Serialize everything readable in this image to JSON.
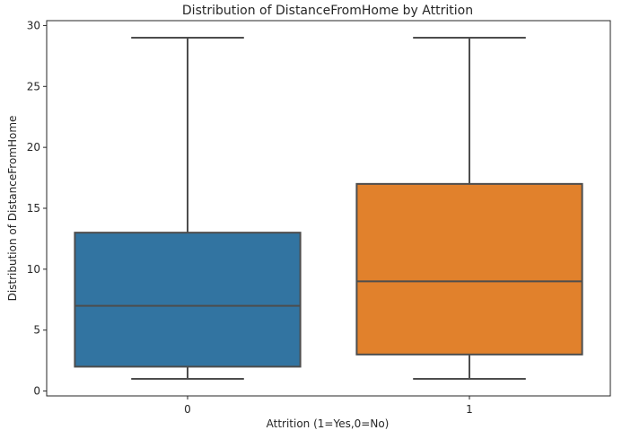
{
  "chart_data": {
    "type": "box",
    "title": "Distribution of DistanceFromHome by Attrition",
    "xlabel": "Attrition (1=Yes,0=No)",
    "ylabel": "Distribution of DistanceFromHome",
    "categories": [
      "0",
      "1"
    ],
    "ylim": [
      -0.4,
      30.4
    ],
    "yticks": [
      0,
      5,
      10,
      15,
      20,
      25,
      30
    ],
    "grid": false,
    "series": [
      {
        "category": "0",
        "min": 1,
        "q1": 2,
        "median": 7,
        "q3": 13,
        "max": 29,
        "color": "#3274a1"
      },
      {
        "category": "1",
        "min": 1,
        "q1": 3,
        "median": 9,
        "q3": 17,
        "max": 29,
        "color": "#e1812c"
      }
    ],
    "line_color": "#4d4d4d"
  }
}
